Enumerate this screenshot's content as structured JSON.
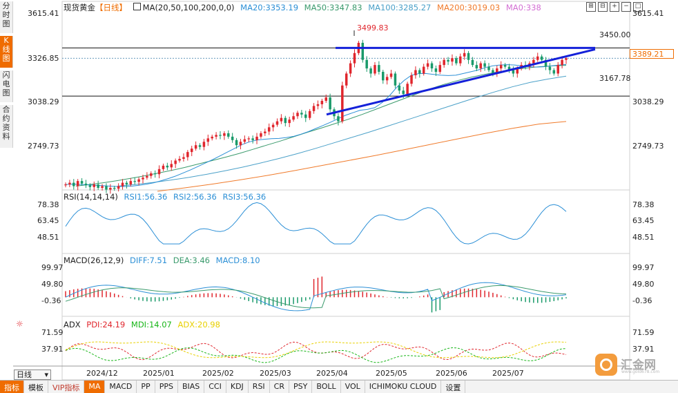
{
  "side_tabs": [
    {
      "label": "分时图",
      "active": false
    },
    {
      "label": "K线图",
      "active": true
    },
    {
      "label": "闪电图",
      "active": false
    },
    {
      "label": "合约资料",
      "active": false
    }
  ],
  "header": {
    "symbol": "现货黄金",
    "period": "【日线】",
    "ma_label": "MA(20,50,100,200,0,0)",
    "ma20": "MA20:3353.19",
    "ma50": "MA50:3347.83",
    "ma100": "MA100:3285.27",
    "ma200": "MA200:3019.03",
    "ma0": "MA0:338"
  },
  "toolbar_icons": [
    "expand-icon",
    "collapse-icon",
    "zoom-in-icon",
    "zoom-out-icon",
    "fullscreen-icon"
  ],
  "price_axis_left": [
    "3615.41",
    "3326.85",
    "3038.29",
    "2749.73"
  ],
  "price_axis_right": [
    "3615.41",
    "3038.29",
    "2749.73"
  ],
  "current_price": "3389.21",
  "annotations": {
    "high": "3499.83",
    "resistance": "3450.00",
    "support": "3167.78"
  },
  "rsi": {
    "label": "RSI(14,14,14)",
    "rsi1": "RSI1:56.36",
    "rsi2": "RSI2:56.36",
    "rsi3": "RSI3:56.36",
    "ticks": [
      "78.38",
      "63.45",
      "48.51"
    ]
  },
  "macd": {
    "label": "MACD(26,12,9)",
    "diff": "DIFF:7.51",
    "dea": "DEA:3.46",
    "macd": "MACD:8.10",
    "ticks": [
      "99.97",
      "49.80",
      "-0.36"
    ]
  },
  "adx": {
    "label": "ADX",
    "pdi": "PDI:24.19",
    "mdi": "MDI:14.07",
    "adxv": "ADX:20.98",
    "ticks": [
      "71.59",
      "37.91"
    ]
  },
  "x_axis": [
    "2024/12",
    "2025/01",
    "2025/02",
    "2025/03",
    "2025/04",
    "2025/05",
    "2025/06",
    "2025/07"
  ],
  "period_selector": "日线",
  "bottom_tabs": [
    "指标",
    "模板",
    "VIP指标",
    "MA",
    "MACD",
    "PP",
    "PPS",
    "BIAS",
    "CCI",
    "KDJ",
    "RSI",
    "CR",
    "PSY",
    "BOLL",
    "VOL",
    "ICHIMOKU CLOUD",
    "设置"
  ],
  "logo": {
    "name": "汇金网",
    "url": "www.gold678.com"
  },
  "colors": {
    "up": "#e0262d",
    "down": "#1a9a6a",
    "ma20": "#2b8fd6",
    "ma50": "#3a9a6c",
    "ma100": "#4aa0c8",
    "ma200": "#f07a2a",
    "trendline": "#1421d9",
    "accent": "#ef6c00"
  },
  "chart_data": {
    "type": "candlestick",
    "title": "现货黄金【日线】",
    "price_range": [
      2630,
      3650
    ],
    "series_ohlc_note": "daily candles Dec-2024 to Jul-2025 approximated from chart",
    "closes": [
      2650,
      2660,
      2640,
      2670,
      2655,
      2645,
      2635,
      2650,
      2630,
      2640,
      2620,
      2630,
      2625,
      2640,
      2660,
      2650,
      2670,
      2665,
      2680,
      2690,
      2700,
      2715,
      2710,
      2740,
      2760,
      2750,
      2770,
      2790,
      2800,
      2810,
      2840,
      2860,
      2880,
      2870,
      2900,
      2920,
      2930,
      2940,
      2935,
      2950,
      2930,
      2910,
      2880,
      2900,
      2915,
      2920,
      2910,
      2930,
      2950,
      2960,
      2985,
      3000,
      3020,
      3040,
      3010,
      3030,
      3050,
      3070,
      3060,
      3040,
      3080,
      3110,
      3120,
      3140,
      3160,
      3090,
      3050,
      3020,
      3230,
      3300,
      3360,
      3420,
      3480,
      3380,
      3330,
      3300,
      3350,
      3310,
      3260,
      3280,
      3300,
      3230,
      3200,
      3180,
      3240,
      3290,
      3320,
      3300,
      3340,
      3360,
      3330,
      3310,
      3350,
      3380,
      3370,
      3390,
      3360,
      3400,
      3420,
      3380,
      3350,
      3330,
      3360,
      3340,
      3320,
      3300,
      3330,
      3350,
      3340,
      3320,
      3300,
      3330,
      3350,
      3340,
      3360,
      3380,
      3400,
      3380,
      3340,
      3320,
      3300,
      3350,
      3380,
      3390
    ],
    "ma20": [
      2650,
      2652,
      2650,
      2648,
      2645,
      2643,
      2640,
      2638,
      2638,
      2640,
      2645,
      2652,
      2660,
      2672,
      2685,
      2700,
      2718,
      2736,
      2756,
      2776,
      2796,
      2818,
      2840,
      2862,
      2884,
      2900,
      2910,
      2915,
      2918,
      2920,
      2925,
      2932,
      2945,
      2960,
      2978,
      2996,
      3015,
      3035,
      3055,
      3070,
      3085,
      3090,
      3100,
      3130,
      3170,
      3220,
      3260,
      3290,
      3300,
      3300,
      3295,
      3290,
      3288,
      3290,
      3300,
      3310,
      3320,
      3335,
      3345,
      3350,
      3352,
      3350,
      3345,
      3340,
      3338,
      3340,
      3345,
      3350,
      3353
    ],
    "ma50": [
      2640,
      2650,
      2660,
      2672,
      2686,
      2700,
      2716,
      2732,
      2750,
      2770,
      2790,
      2810,
      2832,
      2856,
      2880,
      2904,
      2930,
      2956,
      2980,
      3006,
      3032,
      3060,
      3090,
      3120,
      3150,
      3180,
      3210,
      3236,
      3258,
      3278,
      3295,
      3310,
      3322,
      3332,
      3340,
      3345,
      3348
    ],
    "ma100": [
      2640,
      2650,
      2662,
      2676,
      2692,
      2710,
      2730,
      2752,
      2776,
      2802,
      2830,
      2860,
      2892,
      2924,
      2956,
      2990,
      3024,
      3058,
      3092,
      3126,
      3160,
      3192,
      3222,
      3248,
      3268,
      3285
    ],
    "ma200": [
      2610,
      2630,
      2652,
      2676,
      2702,
      2730,
      2760,
      2790,
      2820,
      2852,
      2884,
      2916,
      2948,
      2978,
      3004,
      3019
    ],
    "trendline_upper": {
      "from": 3450,
      "to": 3455
    },
    "trendline_lower": {
      "from": 3060,
      "to": 3400
    },
    "hlines": [
      3450.0,
      3389.21,
      3167.78
    ],
    "rsi_range": [
      30,
      85
    ],
    "macd_range": [
      -60,
      120
    ],
    "adx_range": [
      5,
      80
    ]
  }
}
